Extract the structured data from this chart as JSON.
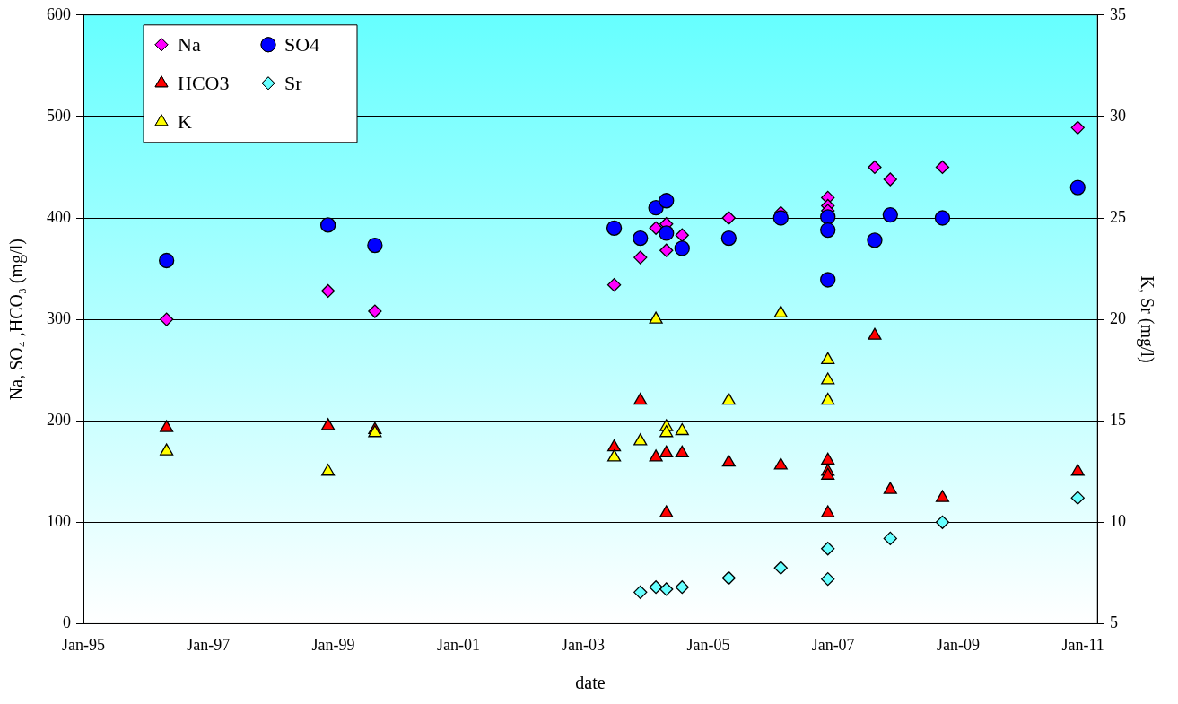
{
  "chart_data": {
    "type": "scatter",
    "xlabel": "date",
    "ylabel": "Na, SO₄ ,HCO₃ (mg/l)",
    "y2label": "K, Sr (mg/l)",
    "xlim": [
      "1995-01-01",
      "2011-03-25"
    ],
    "xticks": [
      {
        "value": "1995-01-01",
        "label": "Jan-95"
      },
      {
        "value": "1997-01-01",
        "label": "Jan-97"
      },
      {
        "value": "1999-01-01",
        "label": "Jan-99"
      },
      {
        "value": "2001-01-01",
        "label": "Jan-01"
      },
      {
        "value": "2003-01-01",
        "label": "Jan-03"
      },
      {
        "value": "2005-01-01",
        "label": "Jan-05"
      },
      {
        "value": "2007-01-01",
        "label": "Jan-07"
      },
      {
        "value": "2009-01-01",
        "label": "Jan-09"
      },
      {
        "value": "2011-01-01",
        "label": "Jan-11"
      }
    ],
    "ylim": [
      0,
      600
    ],
    "yticks": [
      0,
      100,
      200,
      300,
      400,
      500,
      600
    ],
    "y2lim": [
      5,
      35
    ],
    "y2ticks": [
      5,
      10,
      15,
      20,
      25,
      30,
      35
    ],
    "grid": "y",
    "legend": "top left",
    "series": [
      {
        "name": "Na",
        "color": "#ff00ff",
        "marker": "diamond",
        "x": [
          "1996-05",
          "1998-12",
          "1999-09",
          "2003-07",
          "2003-12",
          "2004-03",
          "2004-05",
          "2004-05",
          "2004-08",
          "2005-05",
          "2006-03",
          "2006-12",
          "2006-12",
          "2006-12",
          "2007-09",
          "2007-12",
          "2008-10",
          "2010-12"
        ],
        "values": [
          300,
          328,
          308,
          334,
          361,
          390,
          394,
          368,
          383,
          400,
          405,
          420,
          412,
          407,
          450,
          438,
          450,
          489
        ]
      },
      {
        "name": "HCO3",
        "color": "#ff0000",
        "marker": "triangle",
        "x": [
          "1996-05",
          "1998-12",
          "1999-09",
          "2003-07",
          "2003-12",
          "2004-03",
          "2004-05",
          "2004-05",
          "2004-08",
          "2005-05",
          "2006-03",
          "2006-12",
          "2006-12",
          "2006-12",
          "2006-12",
          "2007-09",
          "2007-12",
          "2008-10",
          "2010-12"
        ],
        "values": [
          193,
          195,
          191,
          174,
          220,
          164,
          168,
          109,
          168,
          159,
          156,
          161,
          150,
          146,
          109,
          284,
          132,
          124,
          150
        ]
      },
      {
        "name": "K",
        "color": "#ffff00",
        "marker": "triangle",
        "axis": "y2",
        "x": [
          "1996-05",
          "1998-12",
          "1999-09",
          "2003-07",
          "2003-12",
          "2004-03",
          "2004-05",
          "2004-05",
          "2004-08",
          "2005-05",
          "2006-03",
          "2006-12",
          "2006-12",
          "2006-12"
        ],
        "values": [
          13.5,
          12.5,
          14.4,
          13.2,
          14.0,
          20.0,
          14.7,
          14.4,
          14.5,
          16.0,
          20.3,
          18.0,
          17.0,
          16.0
        ]
      },
      {
        "name": "SO4",
        "color": "#0000ff",
        "marker": "circle",
        "x": [
          "1996-05",
          "1998-12",
          "1999-09",
          "2003-07",
          "2003-12",
          "2004-03",
          "2004-05",
          "2004-05",
          "2004-08",
          "2005-05",
          "2006-03",
          "2006-12",
          "2006-12",
          "2006-12",
          "2007-09",
          "2007-12",
          "2008-10",
          "2010-12"
        ],
        "values": [
          358,
          393,
          373,
          390,
          380,
          410,
          417,
          385,
          370,
          380,
          400,
          401,
          388,
          339,
          378,
          403,
          400,
          430
        ]
      },
      {
        "name": "Sr",
        "color": "#66ffff",
        "marker": "diamond",
        "axis": "y2",
        "x": [
          "2003-12",
          "2004-03",
          "2004-05",
          "2004-08",
          "2005-05",
          "2006-03",
          "2006-12",
          "2006-12",
          "2007-12",
          "2008-10",
          "2010-12"
        ],
        "values": [
          6.55,
          6.8,
          6.7,
          6.8,
          7.25,
          7.75,
          8.7,
          7.2,
          9.2,
          10.0,
          11.2
        ]
      }
    ]
  }
}
